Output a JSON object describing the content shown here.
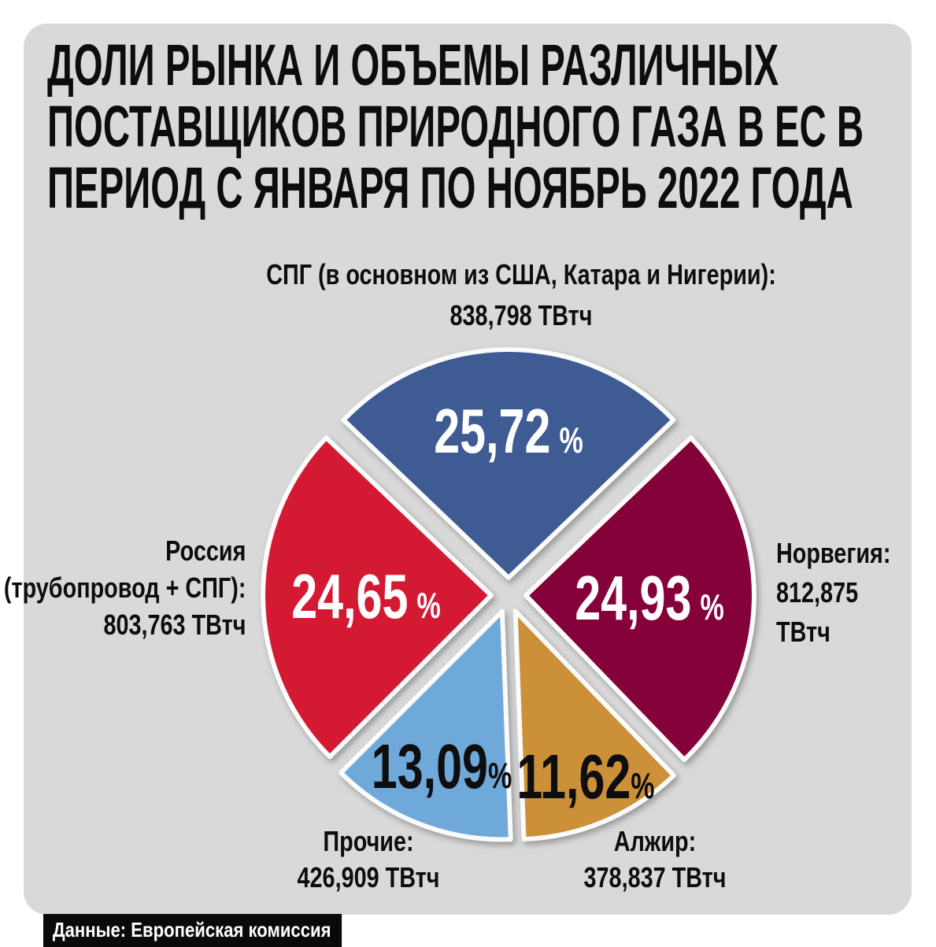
{
  "title_lines": [
    "ДОЛИ РЫНКА И ОБЪЕМЫ РАЗЛИЧНЫХ",
    "ПОСТАВЩИКОВ ПРИРОДНОГО ГАЗА В ЕС В",
    "ПЕРИОД С ЯНВАРЯ ПО НОЯБРЬ 2022 ГОДА"
  ],
  "source_label": "Данные: Европейская комиссия",
  "colors": {
    "page_bg": "#ffffff",
    "card_bg": "#d9d9d9",
    "slice_stroke": "#fbfbfb",
    "source_bg": "#0a0a0a",
    "source_text": "#ffffff",
    "title_text": "#0d0d0d"
  },
  "chart_data": {
    "type": "pie",
    "unit": "ТВтч",
    "percent_sign": "%",
    "layout": {
      "order": "clockwise",
      "first_slice_centered_at": "top",
      "exploded": true,
      "legend": "none"
    },
    "slices": [
      {
        "name": "СПГ (в основном из США, Катара и Нигерии)",
        "label_lines": [
          "СПГ (в основном из США, Катара и Нигерии):",
          "838,798 ТВтч"
        ],
        "value_twh": 838798,
        "percent": 25.72,
        "percent_display": "25,72",
        "color": "#3e5b94",
        "label_color": "#ffffff",
        "label_r": 0.64
      },
      {
        "name": "Норвегия",
        "label_lines": [
          "Норвегия:",
          "812,875",
          "ТВтч"
        ],
        "value_twh": 812875,
        "percent": 24.93,
        "percent_display": "24,93",
        "color": "#85013a",
        "label_color": "#ffffff",
        "label_r": 0.54
      },
      {
        "name": "Алжир",
        "label_lines": [
          "Алжир:",
          "378,837 ТВтч"
        ],
        "value_twh": 378837,
        "percent": 11.62,
        "percent_display": "11,62",
        "color": "#cb9038",
        "label_color": "#0e0e0e",
        "label_r": 0.79
      },
      {
        "name": "Прочие",
        "label_lines": [
          "Прочие:",
          "426,909 ТВтч"
        ],
        "value_twh": 426909,
        "percent": 13.09,
        "percent_display": "13,09",
        "color": "#6fa9d9",
        "label_color": "#0e0e0e",
        "label_r": 0.73
      },
      {
        "name": "Россия (трубопровод + СПГ)",
        "label_lines": [
          "Россия",
          "(трубопровод + СПГ):",
          "803,763 ТВтч"
        ],
        "value_twh": 803763,
        "percent": 24.65,
        "percent_display": "24,65",
        "color": "#d41a33",
        "label_color": "#ffffff",
        "label_r": 0.55
      }
    ]
  }
}
